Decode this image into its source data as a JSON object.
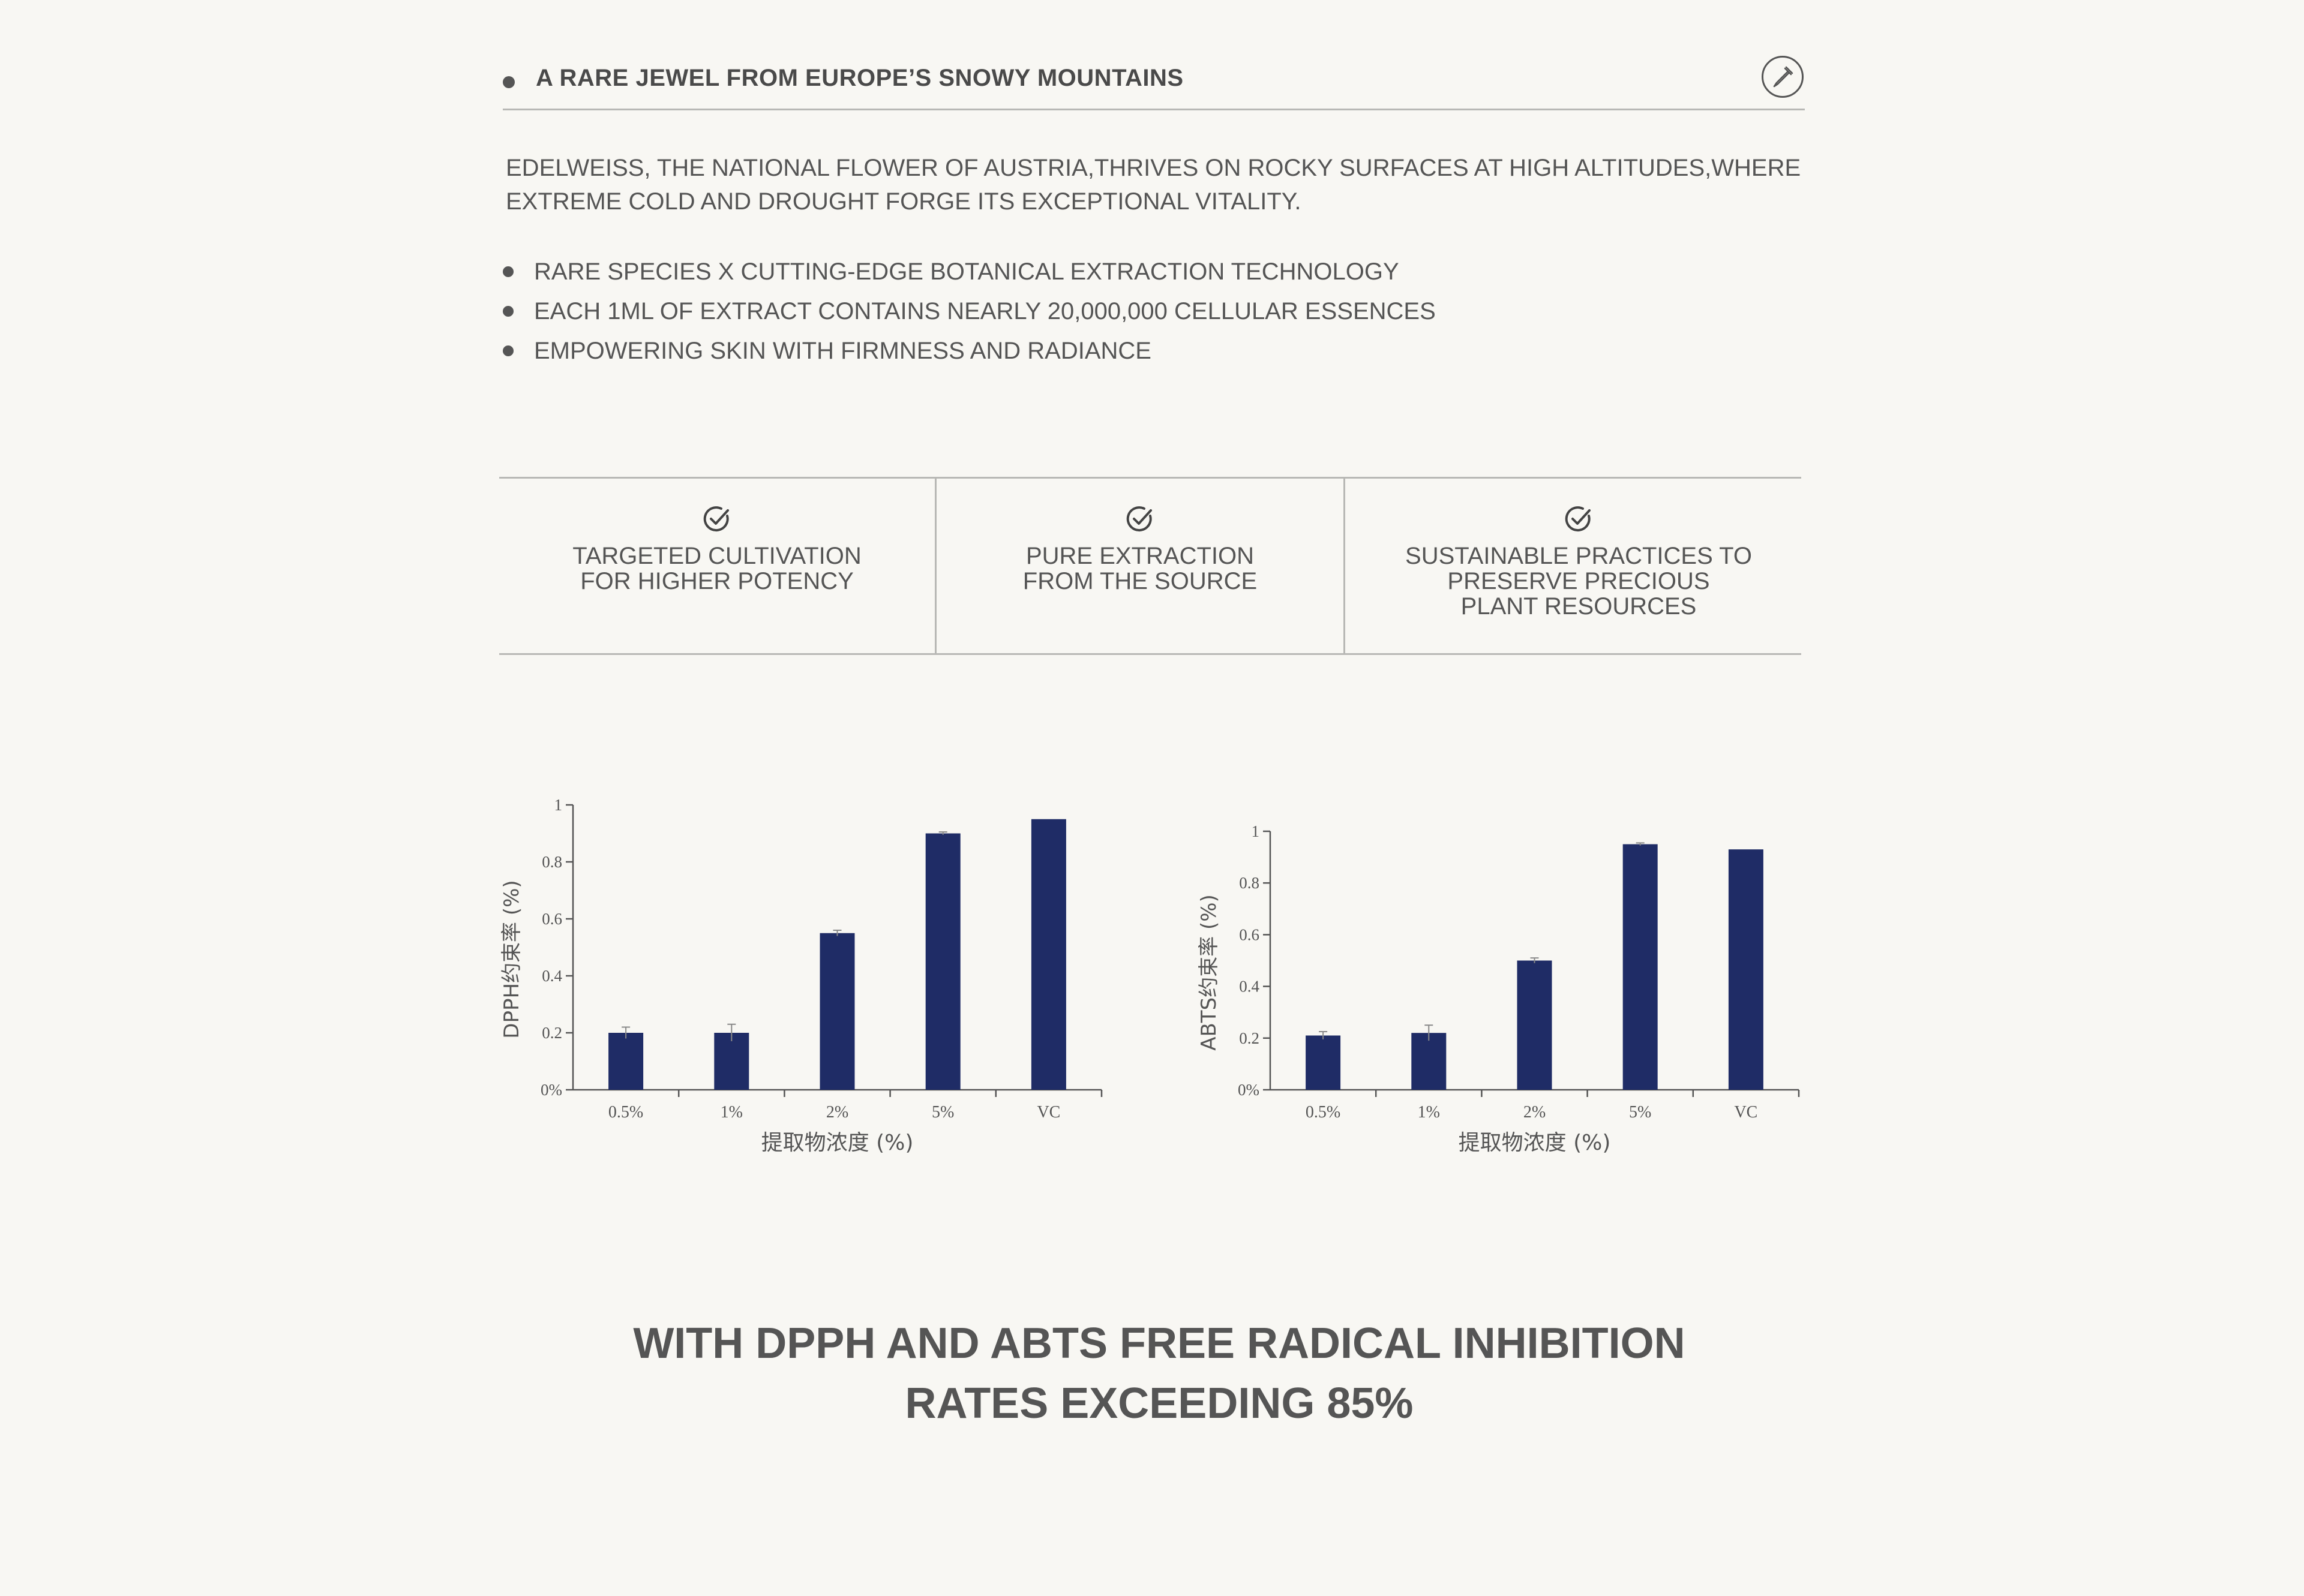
{
  "header": {
    "title": "A RARE JEWEL FROM EUROPE’S SNOWY MOUNTAINS",
    "icon": "dropper-icon"
  },
  "intro": "EDELWEISS, THE NATIONAL FLOWER OF AUSTRIA,THRIVES ON ROCKY SURFACES AT HIGH ALTITUDES,WHERE EXTREME COLD AND DROUGHT FORGE ITS EXCEPTIONAL VITALITY.",
  "bullets": [
    "RARE SPECIES X CUTTING-EDGE BOTANICAL EXTRACTION TECHNOLOGY",
    "EACH 1ML OF EXTRACT CONTAINS NEARLY 20,000,000 CELLULAR ESSENCES",
    "EMPOWERING SKIN WITH FIRMNESS AND RADIANCE"
  ],
  "features": [
    {
      "icon": "check-circle-icon",
      "text": "TARGETED CULTIVATION\nFOR HIGHER POTENCY"
    },
    {
      "icon": "check-circle-icon",
      "text": "PURE EXTRACTION\nFROM THE SOURCE"
    },
    {
      "icon": "check-circle-icon",
      "text": "SUSTAINABLE PRACTICES TO\nPRESERVE PRECIOUS\nPLANT RESOURCES"
    }
  ],
  "chart_data": [
    {
      "type": "bar",
      "categories": [
        "0.5%",
        "1%",
        "2%",
        "5%",
        "VC"
      ],
      "values": [
        0.2,
        0.2,
        0.55,
        0.9,
        0.95
      ],
      "errors": [
        0.02,
        0.03,
        0.01,
        0.005,
        0
      ],
      "xlabel": "提取物浓度 (%)",
      "ylabel": "DPPH约束率 (%)",
      "ylim": [
        0,
        1
      ],
      "yticks": [
        "0%",
        "0.2",
        "0.4",
        "0.6",
        "0.8",
        "1"
      ],
      "color": "#1f2c66",
      "grid": false
    },
    {
      "type": "bar",
      "categories": [
        "0.5%",
        "1%",
        "2%",
        "5%",
        "VC"
      ],
      "values": [
        0.21,
        0.22,
        0.5,
        0.95,
        0.93
      ],
      "errors": [
        0.015,
        0.03,
        0.01,
        0.005,
        0
      ],
      "xlabel": "提取物浓度 (%)",
      "ylabel": "ABTS约束率 (%)",
      "ylim": [
        0,
        1
      ],
      "yticks": [
        "0%",
        "0.2",
        "0.4",
        "0.6",
        "0.8",
        "1"
      ],
      "color": "#1f2c66",
      "grid": false
    }
  ],
  "conclusion": "WITH DPPH AND ABTS FREE RADICAL INHIBITION\nRATES EXCEEDING 85%"
}
